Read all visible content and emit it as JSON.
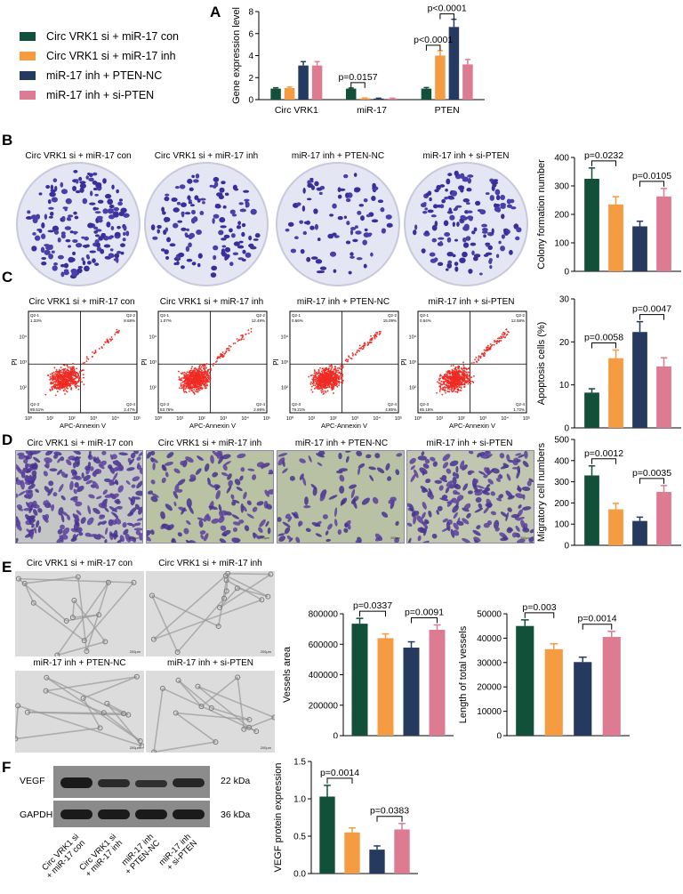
{
  "panel_labels": {
    "a": "A",
    "b": "B",
    "c": "C",
    "d": "D",
    "e": "E",
    "f": "F"
  },
  "legend": [
    {
      "label": "Circ VRK1 si + miR-17 con",
      "color": "#12503a"
    },
    {
      "label": "Circ VRK1 si + miR-17 inh",
      "color": "#f59b42"
    },
    {
      "label": "miR-17 inh + PTEN-NC",
      "color": "#253a5e"
    },
    {
      "label": "miR-17 inh + si-PTEN",
      "color": "#dd7b92"
    }
  ],
  "groups": [
    "Circ VRK1 si + miR-17 con",
    "Circ VRK1 si + miR-17 inh",
    "miR-17 inh + PTEN-NC",
    "miR-17 inh + si-PTEN"
  ],
  "flow": {
    "ylabel": "PI",
    "xlabel": "APC-Annexin V",
    "ticks": [
      "10⁰",
      "10¹",
      "10²",
      "10³",
      "10⁴",
      "10⁵"
    ],
    "yticks": [
      "10²",
      "10³",
      "10⁴"
    ],
    "quadrant_names": [
      "Q2-1",
      "Q2-2",
      "Q2-3",
      "Q2-4"
    ],
    "panels": [
      {
        "q1": "1.33%",
        "q2": "8.68%",
        "q3": "89.51%",
        "q4": "2.47%"
      },
      {
        "q1": "1.07%",
        "q2": "12.49%",
        "q3": "83.76%",
        "q4": "2.69%"
      },
      {
        "q1": "0.66%",
        "q2": "15.09%",
        "q3": "79.21%",
        "q4": "4.85%"
      },
      {
        "q1": "0.54%",
        "q2": "12.58%",
        "q3": "85.15%",
        "q4": "1.72%"
      }
    ]
  },
  "scale_bar": "200μm",
  "western": {
    "bands": [
      {
        "name": "VEGF",
        "size": "22 kDa"
      },
      {
        "name": "GAPDH",
        "size": "36 kDa"
      }
    ],
    "lanes": [
      "Circ VRK1 si\n+ miR-17 con",
      "Circ VRK1 si\n+ miR-17 inh",
      "miR-17 inh\n+ PTEN-NC",
      "miR-17 inh\n+ si-PTEN"
    ]
  },
  "chart_data": [
    {
      "id": "A",
      "type": "bar",
      "title": "",
      "ylabel": "Gene expression level",
      "xlabel": "",
      "categories": [
        "Circ VRK1",
        "miR-17",
        "PTEN"
      ],
      "series": [
        {
          "name": "Circ VRK1 si + miR-17 con",
          "values": [
            1.0,
            1.0,
            1.0
          ],
          "errors": [
            0.08,
            0.06,
            0.1
          ]
        },
        {
          "name": "Circ VRK1 si + miR-17 inh",
          "values": [
            1.05,
            0.12,
            4.0
          ],
          "errors": [
            0.1,
            0.03,
            0.45
          ]
        },
        {
          "name": "miR-17 inh + PTEN-NC",
          "values": [
            3.1,
            0.1,
            6.6
          ],
          "errors": [
            0.35,
            0.03,
            0.7
          ]
        },
        {
          "name": "miR-17 inh + si-PTEN",
          "values": [
            3.1,
            0.1,
            3.2
          ],
          "errors": [
            0.35,
            0.03,
            0.45
          ]
        }
      ],
      "ylim": [
        0,
        8
      ],
      "yticks": [
        0,
        2,
        4,
        6,
        8
      ],
      "annotations": [
        {
          "text": "p=0.0157",
          "cat": 1,
          "from": 0,
          "to": 1
        },
        {
          "text": "p<0.0001",
          "cat": 2,
          "from": 0,
          "to": 1
        },
        {
          "text": "p<0.0001",
          "cat": 2,
          "from": 1,
          "to": 2
        }
      ]
    },
    {
      "id": "B",
      "type": "bar",
      "title": "",
      "ylabel": "Colony formation number",
      "values": [
        325,
        235,
        158,
        263
      ],
      "errors": [
        38,
        27,
        18,
        28
      ],
      "ylim": [
        0,
        400
      ],
      "yticks": [
        0,
        100,
        200,
        300,
        400
      ],
      "annotations": [
        {
          "text": "p=0.0232",
          "from": 0,
          "to": 1
        },
        {
          "text": "p=0.0105",
          "from": 2,
          "to": 3
        }
      ]
    },
    {
      "id": "C",
      "type": "bar",
      "title": "",
      "ylabel": "Apoptosis cells (%)",
      "values": [
        8.2,
        16.2,
        22.3,
        14.3
      ],
      "errors": [
        0.9,
        1.9,
        2.4,
        2.0
      ],
      "ylim": [
        0,
        30
      ],
      "yticks": [
        0,
        10,
        20,
        30
      ],
      "annotations": [
        {
          "text": "p=0.0058",
          "from": 0,
          "to": 1
        },
        {
          "text": "p=0.0047",
          "from": 2,
          "to": 3
        }
      ]
    },
    {
      "id": "D",
      "type": "bar",
      "title": "",
      "ylabel": "Migratory cell numbers",
      "values": [
        330,
        170,
        115,
        252
      ],
      "errors": [
        45,
        28,
        18,
        30
      ],
      "ylim": [
        0,
        500
      ],
      "yticks": [
        0,
        100,
        200,
        300,
        400,
        500
      ],
      "annotations": [
        {
          "text": "p=0.0012",
          "from": 0,
          "to": 1
        },
        {
          "text": "p=0.0035",
          "from": 2,
          "to": 3
        }
      ]
    },
    {
      "id": "E1",
      "type": "bar",
      "title": "",
      "ylabel": "Vessels area",
      "values": [
        735000,
        640000,
        578000,
        695000
      ],
      "errors": [
        35000,
        28000,
        38000,
        32000
      ],
      "ylim": [
        0,
        800000
      ],
      "yticks": [
        0,
        200000,
        400000,
        600000,
        800000
      ],
      "annotations": [
        {
          "text": "p=0.0337",
          "from": 0,
          "to": 1
        },
        {
          "text": "p=0.0091",
          "from": 2,
          "to": 3
        }
      ]
    },
    {
      "id": "E2",
      "type": "bar",
      "title": "",
      "ylabel": "Length of total vessels",
      "values": [
        45000,
        35500,
        30200,
        40500
      ],
      "errors": [
        2500,
        2200,
        2000,
        2300
      ],
      "ylim": [
        0,
        50000
      ],
      "yticks": [
        0,
        10000,
        20000,
        30000,
        40000,
        50000
      ],
      "annotations": [
        {
          "text": "p=0.003",
          "from": 0,
          "to": 1
        },
        {
          "text": "p=0.0014",
          "from": 2,
          "to": 3
        }
      ]
    },
    {
      "id": "F",
      "type": "bar",
      "title": "",
      "ylabel": "VEGF protein expression",
      "values": [
        1.03,
        0.55,
        0.32,
        0.59
      ],
      "errors": [
        0.15,
        0.06,
        0.05,
        0.08
      ],
      "ylim": [
        0,
        1.5
      ],
      "yticks": [
        0.0,
        0.5,
        1.0,
        1.5
      ],
      "annotations": [
        {
          "text": "p=0.0014",
          "from": 0,
          "to": 1
        },
        {
          "text": "p=0.0383",
          "from": 2,
          "to": 3
        }
      ]
    }
  ]
}
